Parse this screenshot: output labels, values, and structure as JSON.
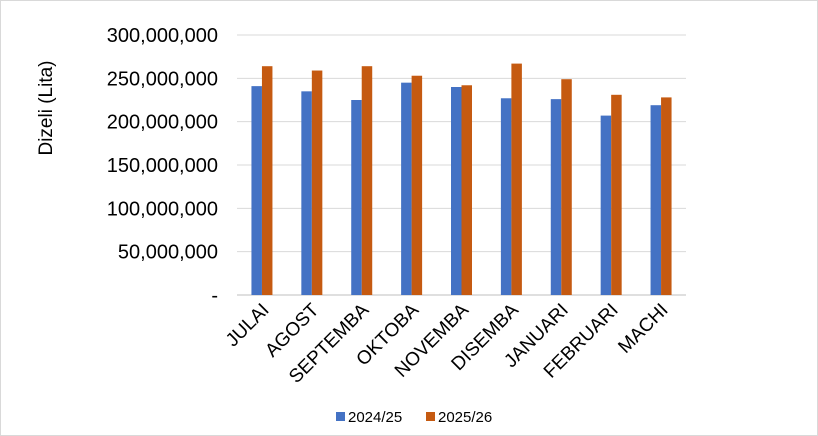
{
  "chart_data": {
    "type": "bar",
    "ylabel": "Dizeli (Lita)",
    "ylim": [
      0,
      300000000
    ],
    "yticks": [
      0,
      50000000,
      100000000,
      150000000,
      200000000,
      250000000,
      300000000
    ],
    "ytick_labels": [
      "-",
      "50,000,000",
      "100,000,000",
      "150,000,000",
      "200,000,000",
      "250,000,000",
      "300,000,000"
    ],
    "grid": true,
    "legend_position": "bottom",
    "categories": [
      "JULAI",
      "AGOST",
      "SEPTEMBA",
      "OKTOBA",
      "NOVEMBA",
      "DISEMBA",
      "JANUARI",
      "FEBRUARI",
      "MACHI"
    ],
    "series": [
      {
        "name": "2024/25",
        "color": "#4472c4",
        "values": [
          241000000,
          235000000,
          225000000,
          245000000,
          240000000,
          227000000,
          226000000,
          207000000,
          219000000
        ]
      },
      {
        "name": "2025/26",
        "color": "#c55a11",
        "values": [
          264000000,
          259000000,
          264000000,
          253000000,
          242000000,
          267000000,
          249000000,
          231000000,
          228000000
        ]
      }
    ]
  }
}
